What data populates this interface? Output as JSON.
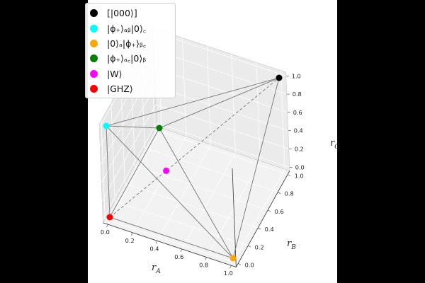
{
  "chart_data": {
    "type": "scatter",
    "projection": "3d",
    "xlabel_base": "r",
    "xlabel_sub": "A",
    "ylabel_base": "r",
    "ylabel_sub": "B",
    "zlabel_base": "r",
    "zlabel_sub": "C",
    "xlim": [
      0,
      1
    ],
    "ylim": [
      0,
      1
    ],
    "zlim": [
      0,
      1
    ],
    "x_ticks": [
      "0.0",
      "0.2",
      "0.4",
      "0.6",
      "0.8",
      "1.0"
    ],
    "y_ticks": [
      "0.0",
      "0.2",
      "0.4",
      "0.6",
      "0.8",
      "1.0"
    ],
    "z_ticks": [
      "0.0",
      "0.2",
      "0.4",
      "0.6",
      "0.8",
      "1.0"
    ],
    "grid": true,
    "legend_position": "top-left",
    "points": [
      {
        "name": "[|000⟩]",
        "x": 1,
        "y": 1,
        "z": 1,
        "color": "#000000"
      },
      {
        "name": "|ϕ₊⟩ₐᵦ|0⟩꜀",
        "x": 0,
        "y": 0,
        "z": 1,
        "color": "#00ffff"
      },
      {
        "name": "|0⟩ₐ|ϕ₊⟩ᵦ꜀",
        "x": 1,
        "y": 0,
        "z": 0,
        "color": "#ffa500"
      },
      {
        "name": "|ϕ₊⟩ₐ꜀|0⟩ᵦ",
        "x": 0,
        "y": 1,
        "z": 0,
        "color": "#008000"
      },
      {
        "name": "|W⟩",
        "x": 0.333,
        "y": 0.333,
        "z": 0.333,
        "color": "#ff00ff"
      },
      {
        "name": "|GHZ⟩",
        "x": 0,
        "y": 0,
        "z": 0,
        "color": "#ff0000"
      }
    ],
    "edges": [
      {
        "from": 0,
        "to": 1,
        "style": "solid"
      },
      {
        "from": 0,
        "to": 2,
        "style": "solid"
      },
      {
        "from": 0,
        "to": 3,
        "style": "solid"
      },
      {
        "from": 1,
        "to": 2,
        "style": "solid"
      },
      {
        "from": 1,
        "to": 3,
        "style": "solid"
      },
      {
        "from": 2,
        "to": 3,
        "style": "solid"
      },
      {
        "from": 5,
        "to": 1,
        "style": "solid"
      },
      {
        "from": 5,
        "to": 2,
        "style": "solid"
      },
      {
        "from": 5,
        "to": 3,
        "style": "solid"
      },
      {
        "from": 5,
        "to": 0,
        "style": "dashed"
      }
    ]
  }
}
